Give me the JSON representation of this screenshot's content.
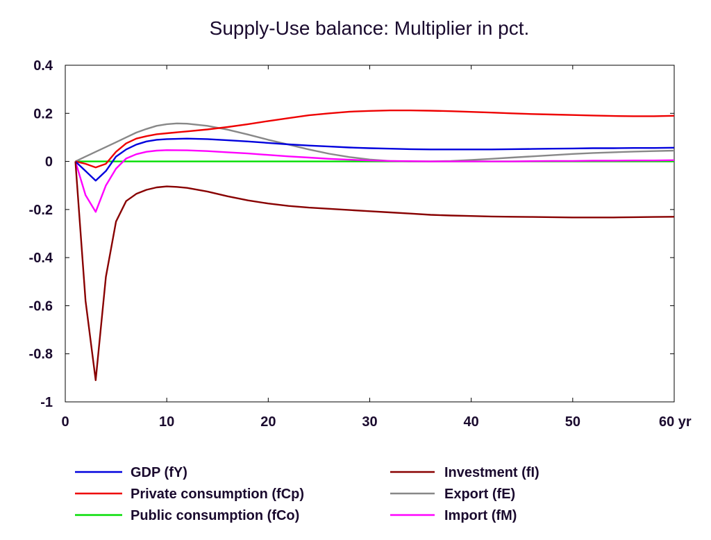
{
  "chart_data": {
    "type": "line",
    "title": "Supply-Use balance: Multiplier in pct.",
    "xlabel": "",
    "ylabel": "",
    "xlim": [
      0,
      60
    ],
    "ylim": [
      -1,
      0.4
    ],
    "x_ticks": [
      0,
      10,
      20,
      30,
      40,
      50,
      60
    ],
    "x_tick_labels": [
      "0",
      "10",
      "20",
      "30",
      "40",
      "50",
      "60 yr"
    ],
    "y_ticks": [
      0.4,
      0.2,
      0,
      -0.2,
      -0.4,
      -0.6,
      -0.8,
      -1
    ],
    "y_tick_labels": [
      "0.4",
      "0.2",
      "0",
      "-0.2",
      "-0.4",
      "-0.6",
      "-0.8",
      "-1"
    ],
    "grid": false,
    "legend_position": "bottom",
    "series": [
      {
        "name": "GDP (fY)",
        "color": "#0000dd",
        "x": [
          1,
          2,
          3,
          4,
          5,
          6,
          7,
          8,
          9,
          10,
          12,
          14,
          16,
          18,
          20,
          22,
          24,
          26,
          28,
          30,
          32,
          34,
          36,
          38,
          40,
          42,
          44,
          46,
          48,
          50,
          52,
          54,
          56,
          58,
          60
        ],
        "y": [
          0,
          -0.04,
          -0.08,
          -0.04,
          0.02,
          0.05,
          0.07,
          0.083,
          0.09,
          0.093,
          0.095,
          0.093,
          0.088,
          0.083,
          0.077,
          0.071,
          0.066,
          0.062,
          0.058,
          0.055,
          0.053,
          0.051,
          0.05,
          0.05,
          0.05,
          0.05,
          0.051,
          0.052,
          0.053,
          0.054,
          0.055,
          0.055,
          0.056,
          0.056,
          0.057
        ]
      },
      {
        "name": "Private consumption (fCp)",
        "color": "#ee0000",
        "x": [
          1,
          2,
          3,
          4,
          5,
          6,
          7,
          8,
          9,
          10,
          12,
          14,
          16,
          18,
          20,
          22,
          24,
          26,
          28,
          30,
          32,
          34,
          36,
          38,
          40,
          42,
          44,
          46,
          48,
          50,
          52,
          54,
          56,
          58,
          60
        ],
        "y": [
          0,
          -0.01,
          -0.025,
          -0.01,
          0.04,
          0.075,
          0.095,
          0.105,
          0.113,
          0.117,
          0.125,
          0.133,
          0.143,
          0.155,
          0.168,
          0.18,
          0.192,
          0.2,
          0.207,
          0.21,
          0.212,
          0.212,
          0.211,
          0.209,
          0.206,
          0.203,
          0.2,
          0.197,
          0.195,
          0.193,
          0.191,
          0.189,
          0.188,
          0.188,
          0.19
        ]
      },
      {
        "name": "Public consumption (fCo)",
        "color": "#00dd00",
        "x": [
          1,
          10,
          20,
          30,
          40,
          50,
          60
        ],
        "y": [
          0,
          0,
          0,
          0,
          0,
          0,
          0
        ]
      },
      {
        "name": "Investment (fI)",
        "color": "#880000",
        "x": [
          1,
          2,
          3,
          4,
          5,
          6,
          7,
          8,
          9,
          10,
          11,
          12,
          14,
          16,
          18,
          20,
          22,
          24,
          26,
          28,
          30,
          32,
          34,
          36,
          38,
          40,
          42,
          44,
          46,
          48,
          50,
          52,
          54,
          56,
          58,
          60
        ],
        "y": [
          0,
          -0.58,
          -0.91,
          -0.48,
          -0.25,
          -0.165,
          -0.135,
          -0.118,
          -0.108,
          -0.104,
          -0.106,
          -0.11,
          -0.125,
          -0.145,
          -0.162,
          -0.175,
          -0.185,
          -0.192,
          -0.197,
          -0.202,
          -0.207,
          -0.212,
          -0.217,
          -0.222,
          -0.225,
          -0.227,
          -0.229,
          -0.23,
          -0.231,
          -0.232,
          -0.233,
          -0.233,
          -0.233,
          -0.232,
          -0.231,
          -0.23
        ]
      },
      {
        "name": "Export (fE)",
        "color": "#888888",
        "x": [
          1,
          2,
          3,
          4,
          5,
          6,
          7,
          8,
          9,
          10,
          11,
          12,
          14,
          16,
          18,
          20,
          22,
          24,
          26,
          28,
          30,
          32,
          34,
          36,
          38,
          40,
          42,
          44,
          46,
          48,
          50,
          52,
          54,
          56,
          58,
          60
        ],
        "y": [
          0,
          0.02,
          0.04,
          0.06,
          0.08,
          0.1,
          0.12,
          0.135,
          0.148,
          0.155,
          0.158,
          0.157,
          0.148,
          0.132,
          0.112,
          0.09,
          0.07,
          0.05,
          0.032,
          0.018,
          0.008,
          0.002,
          0.0,
          0.0,
          0.002,
          0.006,
          0.011,
          0.016,
          0.021,
          0.026,
          0.031,
          0.035,
          0.038,
          0.041,
          0.043,
          0.045
        ]
      },
      {
        "name": "Import (fM)",
        "color": "#ff00ff",
        "x": [
          1,
          2,
          3,
          4,
          5,
          6,
          7,
          8,
          9,
          10,
          12,
          14,
          16,
          18,
          20,
          22,
          24,
          26,
          28,
          30,
          32,
          34,
          36,
          38,
          40,
          42,
          44,
          46,
          48,
          50,
          52,
          54,
          56,
          58,
          60
        ],
        "y": [
          0,
          -0.14,
          -0.21,
          -0.1,
          -0.03,
          0.012,
          0.03,
          0.04,
          0.045,
          0.047,
          0.046,
          0.043,
          0.038,
          0.033,
          0.027,
          0.021,
          0.016,
          0.011,
          0.007,
          0.004,
          0.002,
          0.001,
          0.0,
          0.0,
          0.0,
          0.0,
          0.0,
          0.001,
          0.002,
          0.002,
          0.003,
          0.003,
          0.004,
          0.004,
          0.005
        ]
      }
    ]
  },
  "legend": {
    "items": [
      {
        "label": "GDP (fY)",
        "color": "#0000dd"
      },
      {
        "label": "Private consumption (fCp)",
        "color": "#ee0000"
      },
      {
        "label": "Public consumption (fCo)",
        "color": "#00dd00"
      },
      {
        "label": "Investment (fI)",
        "color": "#880000"
      },
      {
        "label": "Export (fE)",
        "color": "#888888"
      },
      {
        "label": "Import (fM)",
        "color": "#ff00ff"
      }
    ]
  }
}
